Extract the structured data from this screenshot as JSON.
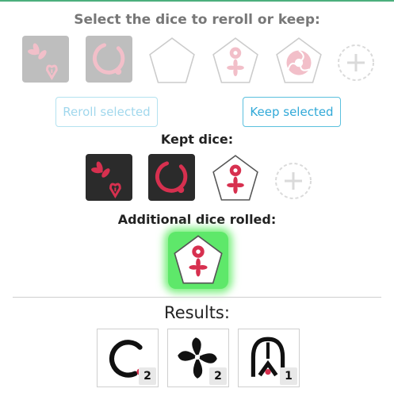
{
  "header": {
    "title": "Select the dice to reroll or keep:"
  },
  "candidate_dice": [
    {
      "icon": "pinwheel-heart-icon",
      "style": "dark"
    },
    {
      "icon": "ring-icon",
      "style": "dark"
    },
    {
      "icon": "blank-pentagon-icon",
      "style": "pentagon"
    },
    {
      "icon": "tomoe-pinwheel-icon",
      "style": "pentagon"
    },
    {
      "icon": "mitsudomoe-icon",
      "style": "pentagon"
    },
    {
      "icon": "add-die-icon",
      "style": "add"
    }
  ],
  "buttons": {
    "reroll_label": "Reroll selected",
    "keep_label": "Keep selected"
  },
  "kept": {
    "title": "Kept dice:",
    "dice": [
      {
        "icon": "pinwheel-heart-icon"
      },
      {
        "icon": "ring-icon"
      },
      {
        "icon": "tomoe-pinwheel-icon"
      }
    ]
  },
  "additional": {
    "title": "Additional dice rolled:",
    "dice": [
      {
        "icon": "tomoe-pinwheel-icon"
      }
    ]
  },
  "results": {
    "title": "Results:",
    "items": [
      {
        "icon": "ring-icon",
        "count": "2"
      },
      {
        "icon": "pinwheel-icon",
        "count": "2"
      },
      {
        "icon": "arch-arrow-icon",
        "count": "1"
      }
    ]
  },
  "colors": {
    "accent_red": "#d7304f",
    "die_dark": "#2b2b2b",
    "button_blue": "#5bc0de",
    "glow_green": "#5ee86a"
  }
}
